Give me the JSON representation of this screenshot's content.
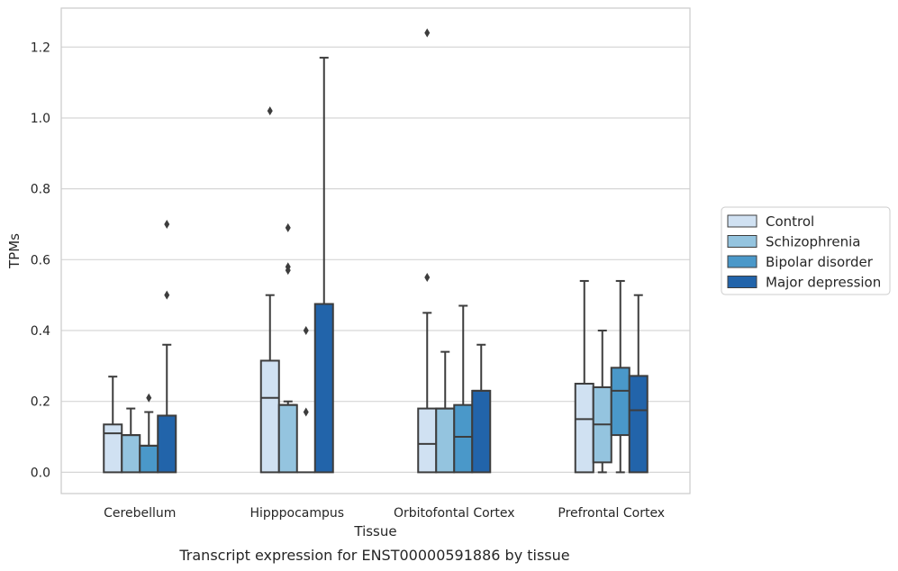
{
  "chart_data": {
    "type": "box",
    "caption": "Transcript expression for ENST00000591886 by tissue",
    "xlabel": "Tissue",
    "ylabel": "TPMs",
    "ylim": [
      -0.06,
      1.31
    ],
    "yticks": [
      "0.0",
      "0.2",
      "0.4",
      "0.6",
      "0.8",
      "1.0",
      "1.2"
    ],
    "ytick_values": [
      0,
      0.2,
      0.4,
      0.6,
      0.8,
      1.0,
      1.2
    ],
    "grid": true,
    "legend_position": "right",
    "categories": [
      "Cerebellum",
      "Hipppocampus",
      "Orbitofontal Cortex",
      "Prefrontal Cortex"
    ],
    "series": [
      {
        "name": "Control",
        "color": "#d0e1f2",
        "boxes": [
          {
            "min": 0,
            "q1": 0,
            "median": 0.11,
            "q3": 0.135,
            "max": 0.27,
            "outliers": []
          },
          {
            "min": 0,
            "q1": 0,
            "median": 0.21,
            "q3": 0.315,
            "max": 0.5,
            "outliers": [
              1.02
            ]
          },
          {
            "min": 0,
            "q1": 0,
            "median": 0.08,
            "q3": 0.18,
            "max": 0.45,
            "outliers": [
              0.55,
              1.24
            ]
          },
          {
            "min": 0,
            "q1": 0,
            "median": 0.15,
            "q3": 0.25,
            "max": 0.54,
            "outliers": []
          }
        ]
      },
      {
        "name": "Schizophrenia",
        "color": "#94c4df",
        "boxes": [
          {
            "min": 0,
            "q1": 0,
            "median": 0.105,
            "q3": 0.105,
            "max": 0.18,
            "outliers": []
          },
          {
            "min": 0,
            "q1": 0,
            "median": 0.19,
            "q3": 0.19,
            "max": 0.2,
            "outliers": [
              0.57,
              0.58,
              0.69
            ]
          },
          {
            "min": 0,
            "q1": 0,
            "median": 0.18,
            "q3": 0.18,
            "max": 0.34,
            "outliers": []
          },
          {
            "min": 0,
            "q1": 0.028,
            "median": 0.135,
            "q3": 0.24,
            "max": 0.4,
            "outliers": []
          }
        ]
      },
      {
        "name": "Bipolar disorder",
        "color": "#4a98c9",
        "boxes": [
          {
            "min": 0,
            "q1": 0,
            "median": 0.075,
            "q3": 0.075,
            "max": 0.17,
            "outliers": [
              0.21
            ]
          },
          {
            "min": 0,
            "q1": 0,
            "median": 0,
            "q3": 0,
            "max": 0,
            "outliers": [
              0.17,
              0.4
            ]
          },
          {
            "min": 0,
            "q1": 0,
            "median": 0.1,
            "q3": 0.19,
            "max": 0.47,
            "outliers": []
          },
          {
            "min": 0,
            "q1": 0.105,
            "median": 0.23,
            "q3": 0.295,
            "max": 0.54,
            "outliers": []
          }
        ]
      },
      {
        "name": "Major depression",
        "color": "#2264aa",
        "boxes": [
          {
            "min": 0,
            "q1": 0,
            "median": 0.16,
            "q3": 0.16,
            "max": 0.36,
            "outliers": [
              0.5,
              0.7
            ]
          },
          {
            "min": 0,
            "q1": 0,
            "median": 0.475,
            "q3": 0.475,
            "max": 1.17,
            "outliers": []
          },
          {
            "min": 0,
            "q1": 0,
            "median": 0.23,
            "q3": 0.23,
            "max": 0.36,
            "outliers": []
          },
          {
            "min": 0,
            "q1": 0,
            "median": 0.175,
            "q3": 0.272,
            "max": 0.5,
            "outliers": []
          }
        ]
      }
    ]
  }
}
